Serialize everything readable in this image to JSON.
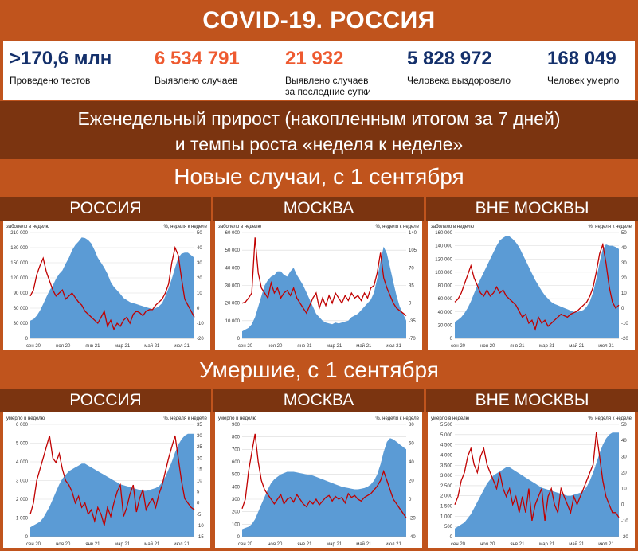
{
  "header": {
    "title": "COVID-19. РОССИЯ"
  },
  "stats": [
    {
      "value": ">170,6 млн",
      "label": "Проведено тестов",
      "label2": "",
      "color": "#14306b"
    },
    {
      "value": "6 534 791",
      "label": "Выявлено случаев",
      "label2": "",
      "color": "#ee5a30"
    },
    {
      "value": "21 932",
      "label": "Выявлено случаев",
      "label2": "за последние сутки",
      "color": "#ee5a30"
    },
    {
      "value": "5 828 972",
      "label": "Человека выздоровело",
      "label2": "",
      "color": "#14306b"
    },
    {
      "value": "168 049",
      "label": "Человек умерло",
      "label2": "",
      "color": "#14306b"
    }
  ],
  "subtitle": {
    "line1": "Еженедельный прирост (накопленным итогом за 7 дней)",
    "line2": "и темпы роста «неделя к неделе»"
  },
  "sections": {
    "cases": "Новые случаи, с 1 сентября",
    "deaths": "Умершие, с 1 сентября"
  },
  "regions": {
    "russia": "РОССИЯ",
    "moscow": "МОСКВА",
    "outside": "ВНЕ МОСКВЫ"
  },
  "colors": {
    "area": "#5b9bd5",
    "line": "#c00000",
    "accent": "#c0541d",
    "dark": "#7b3410"
  },
  "chart_data": [
    {
      "type": "area",
      "id": "cases-russia",
      "region": "РОССИЯ",
      "ylabel_left": "заболело в неделю",
      "ylabel_right": "%, неделя к неделе",
      "x_ticks": [
        "сен 20",
        "ноя 20",
        "янв 21",
        "мар 21",
        "май 21",
        "июл 21"
      ],
      "y_left_ticks": [
        0,
        30000,
        60000,
        90000,
        120000,
        150000,
        180000,
        210000
      ],
      "y_left_tick_labels": [
        "0",
        "30 000",
        "60 000",
        "90 000",
        "120 000",
        "150 000",
        "180 000",
        "210 000"
      ],
      "y_right_ticks": [
        -20,
        -10,
        0,
        10,
        20,
        30,
        40,
        50
      ],
      "ylim_left": [
        0,
        210000
      ],
      "ylim_right": [
        -20,
        50
      ],
      "series": [
        {
          "name": "заболело в неделю",
          "kind": "area",
          "values": [
            35000,
            38000,
            45000,
            55000,
            68000,
            82000,
            95000,
            105000,
            118000,
            128000,
            135000,
            148000,
            160000,
            175000,
            185000,
            192000,
            200000,
            199000,
            195000,
            188000,
            175000,
            160000,
            150000,
            140000,
            128000,
            112000,
            102000,
            95000,
            88000,
            80000,
            76000,
            72000,
            70000,
            68000,
            66000,
            64000,
            62000,
            60000,
            58000,
            60000,
            64000,
            70000,
            84000,
            100000,
            118000,
            140000,
            160000,
            168000,
            170000,
            170000,
            165000,
            160000
          ]
        },
        {
          "name": "%, неделя к неделе",
          "kind": "line",
          "values": [
            8,
            12,
            22,
            28,
            33,
            24,
            18,
            12,
            8,
            10,
            12,
            6,
            8,
            10,
            7,
            4,
            2,
            -2,
            -4,
            -6,
            -8,
            -10,
            -6,
            -2,
            -12,
            -8,
            -14,
            -10,
            -12,
            -8,
            -6,
            -10,
            -4,
            -2,
            -3,
            -5,
            -2,
            -1,
            -1,
            2,
            4,
            6,
            10,
            16,
            30,
            40,
            35,
            20,
            6,
            2,
            -2,
            -6
          ]
        }
      ]
    },
    {
      "type": "area",
      "id": "cases-moscow",
      "region": "МОСКВА",
      "ylabel_left": "заболело в неделю",
      "ylabel_right": "%, неделя к неделе",
      "x_ticks": [
        "сен 20",
        "ноя 20",
        "янв 21",
        "мар 21",
        "май 21",
        "июл 21"
      ],
      "y_left_ticks": [
        0,
        10000,
        20000,
        30000,
        40000,
        50000,
        60000
      ],
      "y_left_tick_labels": [
        "0",
        "10 000",
        "20 000",
        "30 000",
        "40 000",
        "50 000",
        "60 000"
      ],
      "y_right_ticks": [
        -70,
        -35,
        0,
        35,
        70,
        105,
        140
      ],
      "ylim_left": [
        0,
        60000
      ],
      "ylim_right": [
        -70,
        140
      ],
      "series": [
        {
          "name": "заболело в неделю",
          "kind": "area",
          "values": [
            4000,
            5000,
            6000,
            8000,
            12000,
            18000,
            24000,
            30000,
            33000,
            35000,
            36000,
            38000,
            38000,
            36000,
            35000,
            38000,
            40000,
            36000,
            33000,
            30000,
            26000,
            22000,
            18000,
            14000,
            12000,
            10000,
            9000,
            8500,
            8000,
            9000,
            8500,
            9000,
            9500,
            10000,
            12000,
            13000,
            14000,
            16000,
            18000,
            20000,
            22000,
            26000,
            34000,
            44000,
            52000,
            48000,
            40000,
            32000,
            24000,
            18000,
            14000,
            10000
          ]
        },
        {
          "name": "%, неделя к неделе",
          "kind": "line",
          "values": [
            0,
            2,
            10,
            20,
            130,
            60,
            30,
            20,
            10,
            40,
            20,
            30,
            10,
            20,
            25,
            15,
            30,
            10,
            0,
            -10,
            -20,
            -5,
            10,
            20,
            -10,
            10,
            -5,
            15,
            0,
            20,
            10,
            0,
            15,
            5,
            20,
            10,
            15,
            5,
            20,
            10,
            30,
            35,
            60,
            100,
            50,
            30,
            15,
            0,
            -10,
            -15,
            -20,
            -25
          ]
        }
      ]
    },
    {
      "type": "area",
      "id": "cases-outside",
      "region": "ВНЕ МОСКВЫ",
      "ylabel_left": "заболело в неделю",
      "ylabel_right": "%, неделя к неделе",
      "x_ticks": [
        "сен 20",
        "ноя 20",
        "янв 21",
        "мар 21",
        "май 21",
        "июл 21"
      ],
      "y_left_ticks": [
        0,
        20000,
        40000,
        60000,
        80000,
        100000,
        120000,
        140000,
        160000
      ],
      "y_left_tick_labels": [
        "0",
        "20 000",
        "40 000",
        "60 000",
        "80 000",
        "100 000",
        "120 000",
        "140 000",
        "160 000"
      ],
      "y_right_ticks": [
        -20,
        -10,
        0,
        10,
        20,
        30,
        40,
        50
      ],
      "ylim_left": [
        0,
        160000
      ],
      "ylim_right": [
        -20,
        50
      ],
      "series": [
        {
          "name": "заболело в неделю",
          "kind": "area",
          "values": [
            25000,
            28000,
            32000,
            38000,
            46000,
            56000,
            68000,
            80000,
            90000,
            100000,
            110000,
            120000,
            130000,
            140000,
            148000,
            152000,
            155000,
            154000,
            150000,
            145000,
            138000,
            128000,
            118000,
            108000,
            98000,
            88000,
            80000,
            72000,
            65000,
            60000,
            55000,
            52000,
            50000,
            48000,
            46000,
            44000,
            42000,
            40000,
            40000,
            41000,
            43000,
            48000,
            56000,
            70000,
            90000,
            115000,
            135000,
            142000,
            140000,
            140000,
            138000,
            135000
          ]
        },
        {
          "name": "%, неделя к неделе",
          "kind": "line",
          "values": [
            4,
            6,
            10,
            16,
            22,
            28,
            20,
            15,
            10,
            8,
            12,
            8,
            10,
            14,
            10,
            12,
            8,
            6,
            4,
            2,
            -2,
            -6,
            -4,
            -10,
            -8,
            -14,
            -6,
            -10,
            -8,
            -12,
            -10,
            -8,
            -6,
            -4,
            -5,
            -6,
            -4,
            -3,
            -2,
            0,
            2,
            4,
            8,
            14,
            24,
            36,
            42,
            30,
            14,
            4,
            0,
            2
          ]
        }
      ]
    },
    {
      "type": "area",
      "id": "deaths-russia",
      "region": "РОССИЯ",
      "ylabel_left": "умерло в неделю",
      "ylabel_right": "%, неделя к неделе",
      "x_ticks": [
        "сен 20",
        "ноя 20",
        "янв 21",
        "мар 21",
        "май 21",
        "июл 21"
      ],
      "y_left_ticks": [
        0,
        1000,
        2000,
        3000,
        4000,
        5000,
        6000
      ],
      "y_left_tick_labels": [
        "0",
        "1 000",
        "2 000",
        "3 000",
        "4 000",
        "5 000",
        "6 000"
      ],
      "y_right_ticks": [
        -15,
        -10,
        -5,
        0,
        5,
        10,
        15,
        20,
        25,
        30,
        35
      ],
      "ylim_left": [
        0,
        6000
      ],
      "ylim_right": [
        -15,
        35
      ],
      "series": [
        {
          "name": "умерло в неделю",
          "kind": "area",
          "values": [
            500,
            600,
            700,
            800,
            1000,
            1300,
            1600,
            2000,
            2400,
            2800,
            3100,
            3300,
            3500,
            3600,
            3700,
            3800,
            3900,
            3900,
            3800,
            3700,
            3600,
            3500,
            3400,
            3300,
            3200,
            3100,
            3000,
            2900,
            2800,
            2750,
            2700,
            2650,
            2600,
            2550,
            2500,
            2450,
            2450,
            2500,
            2550,
            2600,
            2700,
            2900,
            3200,
            3600,
            4000,
            4500,
            4900,
            5200,
            5400,
            5500,
            5500,
            5500
          ]
        },
        {
          "name": "%, неделя к неделе",
          "kind": "line",
          "values": [
            -5,
            0,
            10,
            15,
            20,
            25,
            30,
            20,
            18,
            22,
            15,
            10,
            8,
            5,
            0,
            3,
            -2,
            0,
            -5,
            -3,
            -8,
            -2,
            -5,
            -10,
            -2,
            -6,
            0,
            5,
            8,
            -6,
            -2,
            4,
            8,
            -4,
            2,
            6,
            -3,
            0,
            2,
            -2,
            4,
            8,
            14,
            20,
            25,
            30,
            20,
            10,
            2,
            0,
            -2,
            -3
          ]
        }
      ]
    },
    {
      "type": "area",
      "id": "deaths-moscow",
      "region": "МОСКВА",
      "ylabel_left": "умерло в неделю",
      "ylabel_right": "%, неделя к неделе",
      "x_ticks": [
        "сен 20",
        "ноя 20",
        "янв 21",
        "мар 21",
        "май 21",
        "июл 21"
      ],
      "y_left_ticks": [
        0,
        100,
        200,
        300,
        400,
        500,
        600,
        700,
        800,
        900
      ],
      "y_left_tick_labels": [
        "0",
        "100",
        "200",
        "300",
        "400",
        "500",
        "600",
        "700",
        "800",
        "900"
      ],
      "y_right_ticks": [
        -40,
        -20,
        0,
        20,
        40,
        60,
        80
      ],
      "ylim_left": [
        0,
        900
      ],
      "ylim_right": [
        -40,
        80
      ],
      "series": [
        {
          "name": "умерло в неделю",
          "kind": "area",
          "values": [
            60,
            70,
            80,
            100,
            140,
            200,
            260,
            320,
            380,
            430,
            460,
            480,
            500,
            510,
            520,
            520,
            520,
            515,
            510,
            505,
            500,
            495,
            490,
            480,
            470,
            460,
            450,
            440,
            430,
            420,
            410,
            400,
            395,
            390,
            385,
            380,
            380,
            385,
            390,
            400,
            420,
            450,
            500,
            580,
            680,
            760,
            790,
            780,
            760,
            740,
            720,
            700
          ]
        },
        {
          "name": "%, неделя к неделе",
          "kind": "line",
          "values": [
            -10,
            0,
            30,
            50,
            70,
            40,
            20,
            10,
            5,
            0,
            -5,
            0,
            5,
            -5,
            0,
            2,
            -3,
            5,
            0,
            -5,
            -8,
            -2,
            -5,
            0,
            -6,
            -2,
            2,
            4,
            -2,
            3,
            0,
            2,
            -4,
            6,
            2,
            4,
            0,
            -2,
            2,
            4,
            6,
            10,
            14,
            20,
            30,
            20,
            10,
            0,
            -5,
            -10,
            -15,
            -20
          ]
        }
      ]
    },
    {
      "type": "area",
      "id": "deaths-outside",
      "region": "ВНЕ МОСКВЫ",
      "ylabel_left": "умерло в неделю",
      "ylabel_right": "%, неделя к неделе",
      "x_ticks": [
        "сен 20",
        "ноя 20",
        "янв 21",
        "мар 21",
        "май 21",
        "июл 21"
      ],
      "y_left_ticks": [
        0,
        500,
        1000,
        1500,
        2000,
        2500,
        3000,
        3500,
        4000,
        4500,
        5000,
        5500
      ],
      "y_left_tick_labels": [
        "0",
        "500",
        "1 000",
        "1 500",
        "2 000",
        "2 500",
        "3 000",
        "3 500",
        "4 000",
        "4 500",
        "5 000",
        "5 500"
      ],
      "y_right_ticks": [
        -20,
        -10,
        0,
        10,
        20,
        30,
        40,
        50
      ],
      "ylim_left": [
        0,
        5500
      ],
      "ylim_right": [
        -20,
        50
      ],
      "series": [
        {
          "name": "умерло в неделю",
          "kind": "area",
          "values": [
            400,
            500,
            600,
            700,
            900,
            1100,
            1400,
            1700,
            2000,
            2300,
            2600,
            2800,
            3000,
            3100,
            3200,
            3300,
            3400,
            3400,
            3300,
            3200,
            3100,
            3000,
            2900,
            2800,
            2700,
            2600,
            2500,
            2400,
            2350,
            2300,
            2250,
            2200,
            2150,
            2100,
            2050,
            2000,
            2000,
            2050,
            2100,
            2150,
            2250,
            2450,
            2750,
            3150,
            3600,
            4100,
            4500,
            4800,
            5000,
            5100,
            5100,
            5100
          ]
        },
        {
          "name": "%, неделя к неделе",
          "kind": "line",
          "values": [
            0,
            5,
            15,
            20,
            30,
            35,
            25,
            20,
            30,
            35,
            25,
            20,
            15,
            10,
            20,
            10,
            5,
            10,
            0,
            5,
            -5,
            5,
            -5,
            10,
            -10,
            0,
            5,
            10,
            -10,
            5,
            10,
            0,
            -5,
            10,
            5,
            0,
            -5,
            5,
            0,
            5,
            10,
            15,
            20,
            25,
            45,
            30,
            15,
            5,
            0,
            -5,
            -5,
            -8
          ]
        }
      ]
    }
  ]
}
